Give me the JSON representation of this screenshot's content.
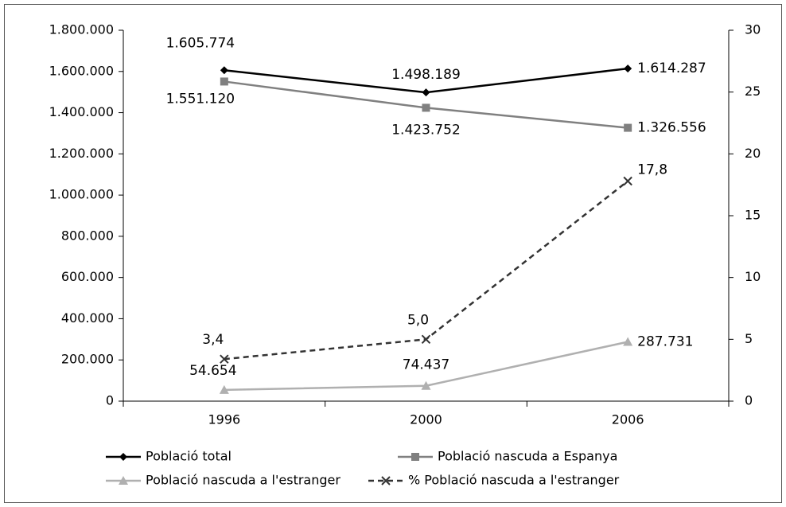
{
  "chart_data": {
    "type": "line",
    "categories": [
      "1996",
      "2000",
      "2006"
    ],
    "series": [
      {
        "name": "Població total",
        "color": "#000000",
        "marker": "diamond",
        "dash": false,
        "values": [
          1605774,
          1498189,
          1614287
        ],
        "value_labels": [
          "1.605.774",
          "1.498.189",
          "1.614.287"
        ]
      },
      {
        "name": "Població nascuda a Espanya",
        "color": "#808080",
        "marker": "square",
        "dash": false,
        "values": [
          1551120,
          1423752,
          1326556
        ],
        "value_labels": [
          "1.551.120",
          "1.423.752",
          "1.326.556"
        ]
      },
      {
        "name": "Població nascuda a l'estranger",
        "color": "#b0b0b0",
        "marker": "triangle",
        "dash": false,
        "values": [
          54654,
          74437,
          287731
        ],
        "value_labels": [
          "54.654",
          "74.437",
          "287.731"
        ]
      },
      {
        "name": "% Població nascuda a l'estranger",
        "color": "#333333",
        "marker": "x",
        "dash": true,
        "axis": "y2",
        "values": [
          3.4,
          5.0,
          17.8
        ],
        "value_labels": [
          "3,4",
          "5,0",
          "17,8"
        ]
      }
    ],
    "ylim": [
      0,
      1800000
    ],
    "yticks": [
      0,
      {
        "value": 200000,
        "label": "200.000"
      },
      {
        "value": 400000,
        "label": "400.000"
      },
      {
        "value": 600000,
        "label": "600.000"
      },
      {
        "value": 800000,
        "label": "800.000"
      },
      {
        "value": 1000000,
        "label": "1.000.000"
      },
      {
        "value": 1200000,
        "label": "1.200.000"
      },
      {
        "value": 1400000,
        "label": "1.400.000"
      },
      {
        "value": 1600000,
        "label": "1.600.000"
      },
      {
        "value": 1800000,
        "label": "1.800.000"
      }
    ],
    "y2lim": [
      0,
      30
    ],
    "y2ticks": [
      0,
      5,
      10,
      15,
      20,
      25,
      30
    ],
    "grid": false,
    "legend": "bottom"
  }
}
